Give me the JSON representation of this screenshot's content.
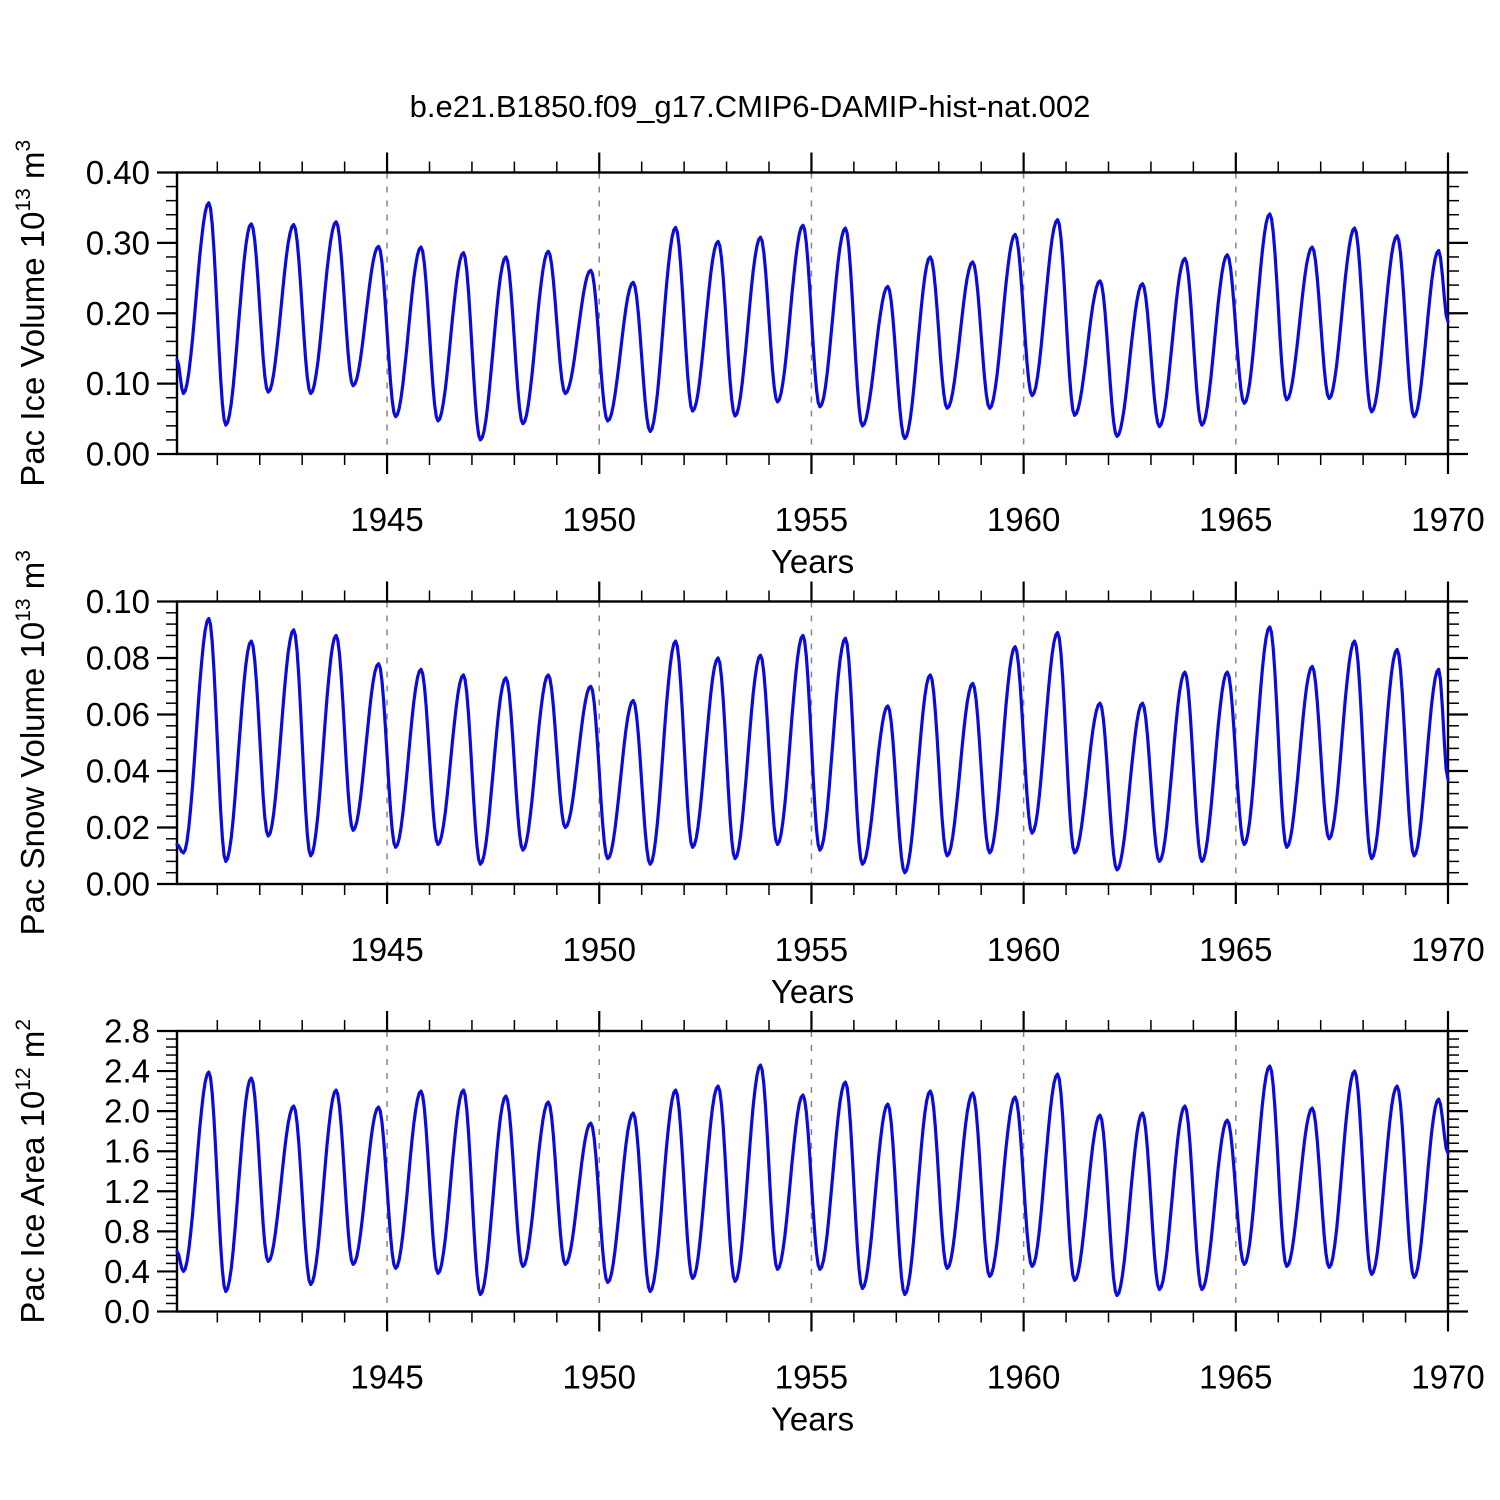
{
  "title": "b.e21.B1850.f09_g17.CMIP6-DAMIP-hist-nat.002",
  "style": {
    "line_color": "#0b0bdc",
    "grid_color": "#868686",
    "axis_color": "#000000"
  },
  "x_axis": {
    "label": "Years",
    "start": 1940.05,
    "end": 1970.0,
    "major_ticks": [
      1945,
      1950,
      1955,
      1960,
      1965,
      1970
    ],
    "major_tick_labels": [
      "1945",
      "1950",
      "1955",
      "1960",
      "1965",
      "1970"
    ],
    "minor_tick_interval_years": 1,
    "dashed_gridlines_at": [
      1945,
      1950,
      1955,
      1960,
      1965
    ]
  },
  "chart_data": [
    {
      "type": "line",
      "panel": "top",
      "series_name": "Pac Ice Volume",
      "ylabel_text": "Pac Ice Volume 10^13 m^3",
      "ylabel_parts": {
        "base": "Pac Ice Volume 10",
        "exp": "13",
        "unit": " m",
        "unit_exp": "3"
      },
      "xlabel": "Years",
      "ylim": [
        0.0,
        0.4
      ],
      "ytick_major_interval": 0.1,
      "ytick_minor_interval": 0.02,
      "ytick_values": [
        0.0,
        0.1,
        0.2,
        0.3,
        0.4
      ],
      "ytick_labels": [
        "0.00",
        "0.10",
        "0.20",
        "0.30",
        "0.40"
      ],
      "grid": "vertical-dashed",
      "legend": "none",
      "seasonal_extremes_t_v": [
        [
          1940.05,
          0.134
        ],
        [
          1940.2,
          0.086
        ],
        [
          1940.8,
          0.357
        ],
        [
          1941.2,
          0.041
        ],
        [
          1941.8,
          0.327
        ],
        [
          1942.2,
          0.088
        ],
        [
          1942.8,
          0.326
        ],
        [
          1943.2,
          0.086
        ],
        [
          1943.8,
          0.33
        ],
        [
          1944.2,
          0.097
        ],
        [
          1944.8,
          0.295
        ],
        [
          1945.2,
          0.053
        ],
        [
          1945.8,
          0.294
        ],
        [
          1946.2,
          0.047
        ],
        [
          1946.8,
          0.286
        ],
        [
          1947.2,
          0.02
        ],
        [
          1947.8,
          0.28
        ],
        [
          1948.2,
          0.043
        ],
        [
          1948.8,
          0.288
        ],
        [
          1949.2,
          0.086
        ],
        [
          1949.8,
          0.261
        ],
        [
          1950.2,
          0.047
        ],
        [
          1950.8,
          0.244
        ],
        [
          1951.2,
          0.032
        ],
        [
          1951.8,
          0.322
        ],
        [
          1952.2,
          0.061
        ],
        [
          1952.8,
          0.302
        ],
        [
          1953.2,
          0.054
        ],
        [
          1953.8,
          0.308
        ],
        [
          1954.2,
          0.074
        ],
        [
          1954.8,
          0.325
        ],
        [
          1955.2,
          0.067
        ],
        [
          1955.8,
          0.321
        ],
        [
          1956.2,
          0.04
        ],
        [
          1956.8,
          0.238
        ],
        [
          1957.2,
          0.022
        ],
        [
          1957.8,
          0.28
        ],
        [
          1958.2,
          0.065
        ],
        [
          1958.8,
          0.273
        ],
        [
          1959.2,
          0.065
        ],
        [
          1959.8,
          0.312
        ],
        [
          1960.2,
          0.083
        ],
        [
          1960.8,
          0.333
        ],
        [
          1961.2,
          0.055
        ],
        [
          1961.8,
          0.246
        ],
        [
          1962.2,
          0.025
        ],
        [
          1962.8,
          0.242
        ],
        [
          1963.2,
          0.039
        ],
        [
          1963.8,
          0.278
        ],
        [
          1964.2,
          0.041
        ],
        [
          1964.8,
          0.283
        ],
        [
          1965.2,
          0.072
        ],
        [
          1965.8,
          0.341
        ],
        [
          1966.2,
          0.077
        ],
        [
          1966.8,
          0.294
        ],
        [
          1967.2,
          0.079
        ],
        [
          1967.8,
          0.321
        ],
        [
          1968.2,
          0.06
        ],
        [
          1968.8,
          0.31
        ],
        [
          1969.2,
          0.053
        ],
        [
          1969.78,
          0.289
        ],
        [
          1970.0,
          0.188
        ]
      ]
    },
    {
      "type": "line",
      "panel": "middle",
      "series_name": "Pac Snow Volume",
      "ylabel_text": "Pac Snow Volume 10^13 m^3",
      "ylabel_parts": {
        "base": "Pac Snow Volume 10",
        "exp": "13",
        "unit": " m",
        "unit_exp": "3"
      },
      "xlabel": "Years",
      "ylim": [
        0.0,
        0.1
      ],
      "ytick_major_interval": 0.02,
      "ytick_minor_interval": 0.004,
      "ytick_values": [
        0.0,
        0.02,
        0.04,
        0.06,
        0.08,
        0.1
      ],
      "ytick_labels": [
        "0.00",
        "0.02",
        "0.04",
        "0.06",
        "0.08",
        "0.10"
      ],
      "grid": "vertical-dashed",
      "legend": "none",
      "seasonal_extremes_t_v": [
        [
          1940.05,
          0.014
        ],
        [
          1940.2,
          0.011
        ],
        [
          1940.8,
          0.094
        ],
        [
          1941.2,
          0.008
        ],
        [
          1941.8,
          0.086
        ],
        [
          1942.2,
          0.017
        ],
        [
          1942.8,
          0.09
        ],
        [
          1943.2,
          0.01
        ],
        [
          1943.8,
          0.088
        ],
        [
          1944.2,
          0.019
        ],
        [
          1944.8,
          0.078
        ],
        [
          1945.2,
          0.013
        ],
        [
          1945.8,
          0.076
        ],
        [
          1946.2,
          0.014
        ],
        [
          1946.8,
          0.074
        ],
        [
          1947.2,
          0.007
        ],
        [
          1947.8,
          0.073
        ],
        [
          1948.2,
          0.012
        ],
        [
          1948.8,
          0.074
        ],
        [
          1949.2,
          0.02
        ],
        [
          1949.8,
          0.07
        ],
        [
          1950.2,
          0.009
        ],
        [
          1950.8,
          0.065
        ],
        [
          1951.2,
          0.007
        ],
        [
          1951.8,
          0.086
        ],
        [
          1952.2,
          0.013
        ],
        [
          1952.8,
          0.08
        ],
        [
          1953.2,
          0.009
        ],
        [
          1953.8,
          0.081
        ],
        [
          1954.2,
          0.014
        ],
        [
          1954.8,
          0.088
        ],
        [
          1955.2,
          0.012
        ],
        [
          1955.8,
          0.087
        ],
        [
          1956.2,
          0.007
        ],
        [
          1956.8,
          0.063
        ],
        [
          1957.2,
          0.004
        ],
        [
          1957.8,
          0.074
        ],
        [
          1958.2,
          0.01
        ],
        [
          1958.8,
          0.071
        ],
        [
          1959.2,
          0.011
        ],
        [
          1959.8,
          0.084
        ],
        [
          1960.2,
          0.018
        ],
        [
          1960.8,
          0.089
        ],
        [
          1961.2,
          0.011
        ],
        [
          1961.8,
          0.064
        ],
        [
          1962.2,
          0.005
        ],
        [
          1962.8,
          0.064
        ],
        [
          1963.2,
          0.008
        ],
        [
          1963.8,
          0.075
        ],
        [
          1964.2,
          0.008
        ],
        [
          1964.8,
          0.075
        ],
        [
          1965.2,
          0.014
        ],
        [
          1965.8,
          0.091
        ],
        [
          1966.2,
          0.013
        ],
        [
          1966.8,
          0.077
        ],
        [
          1967.2,
          0.016
        ],
        [
          1967.8,
          0.086
        ],
        [
          1968.2,
          0.009
        ],
        [
          1968.8,
          0.083
        ],
        [
          1969.2,
          0.01
        ],
        [
          1969.78,
          0.076
        ],
        [
          1970.0,
          0.037
        ]
      ]
    },
    {
      "type": "line",
      "panel": "bottom",
      "series_name": "Pac Ice Area",
      "ylabel_text": "Pac Ice Area 10^12 m^2",
      "ylabel_parts": {
        "base": "Pac Ice Area 10",
        "exp": "12",
        "unit": " m",
        "unit_exp": "2"
      },
      "xlabel": "Years",
      "ylim": [
        0.0,
        2.8
      ],
      "ytick_major_interval": 0.4,
      "ytick_minor_interval": 0.08,
      "ytick_values": [
        0.0,
        0.4,
        0.8,
        1.2,
        1.6,
        2.0,
        2.4,
        2.8
      ],
      "ytick_labels": [
        "0.0",
        "0.4",
        "0.8",
        "1.2",
        "1.6",
        "2.0",
        "2.4",
        "2.8"
      ],
      "grid": "vertical-dashed",
      "legend": "none",
      "seasonal_extremes_t_v": [
        [
          1940.05,
          0.6
        ],
        [
          1940.2,
          0.4
        ],
        [
          1940.8,
          2.39
        ],
        [
          1941.2,
          0.2
        ],
        [
          1941.8,
          2.33
        ],
        [
          1942.2,
          0.5
        ],
        [
          1942.8,
          2.05
        ],
        [
          1943.2,
          0.27
        ],
        [
          1943.8,
          2.21
        ],
        [
          1944.2,
          0.47
        ],
        [
          1944.8,
          2.04
        ],
        [
          1945.2,
          0.43
        ],
        [
          1945.8,
          2.2
        ],
        [
          1946.2,
          0.38
        ],
        [
          1946.8,
          2.21
        ],
        [
          1947.2,
          0.17
        ],
        [
          1947.8,
          2.15
        ],
        [
          1948.2,
          0.45
        ],
        [
          1948.8,
          2.09
        ],
        [
          1949.2,
          0.47
        ],
        [
          1949.8,
          1.88
        ],
        [
          1950.2,
          0.29
        ],
        [
          1950.8,
          1.98
        ],
        [
          1951.2,
          0.2
        ],
        [
          1951.8,
          2.21
        ],
        [
          1952.2,
          0.33
        ],
        [
          1952.8,
          2.25
        ],
        [
          1953.2,
          0.3
        ],
        [
          1953.8,
          2.46
        ],
        [
          1954.2,
          0.42
        ],
        [
          1954.8,
          2.16
        ],
        [
          1955.2,
          0.42
        ],
        [
          1955.8,
          2.29
        ],
        [
          1956.2,
          0.23
        ],
        [
          1956.8,
          2.07
        ],
        [
          1957.2,
          0.17
        ],
        [
          1957.8,
          2.2
        ],
        [
          1958.2,
          0.43
        ],
        [
          1958.8,
          2.18
        ],
        [
          1959.2,
          0.35
        ],
        [
          1959.8,
          2.14
        ],
        [
          1960.2,
          0.45
        ],
        [
          1960.8,
          2.37
        ],
        [
          1961.2,
          0.31
        ],
        [
          1961.8,
          1.96
        ],
        [
          1962.2,
          0.16
        ],
        [
          1962.8,
          1.98
        ],
        [
          1963.2,
          0.22
        ],
        [
          1963.8,
          2.05
        ],
        [
          1964.2,
          0.22
        ],
        [
          1964.8,
          1.91
        ],
        [
          1965.2,
          0.47
        ],
        [
          1965.8,
          2.45
        ],
        [
          1966.2,
          0.45
        ],
        [
          1966.8,
          2.03
        ],
        [
          1967.2,
          0.44
        ],
        [
          1967.8,
          2.4
        ],
        [
          1968.2,
          0.37
        ],
        [
          1968.8,
          2.25
        ],
        [
          1969.2,
          0.34
        ],
        [
          1969.78,
          2.12
        ],
        [
          1970.0,
          1.58
        ]
      ]
    }
  ]
}
